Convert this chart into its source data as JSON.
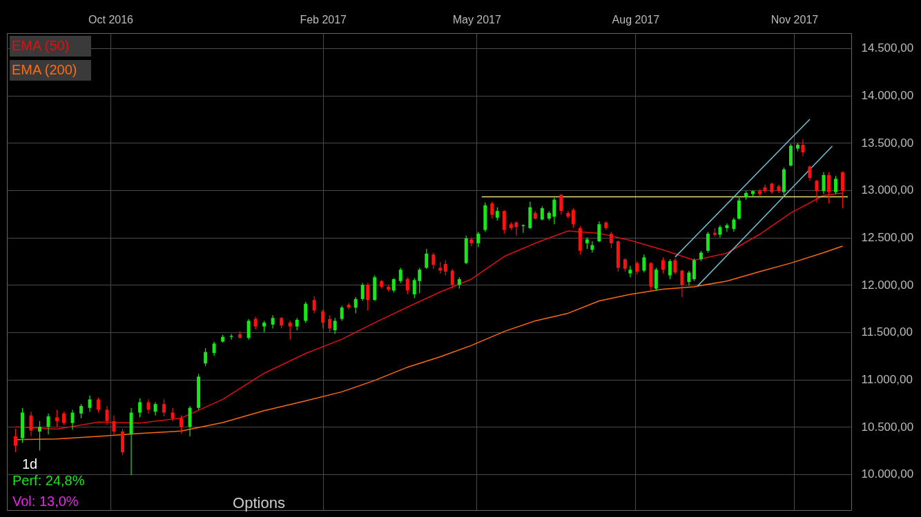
{
  "chart_data": {
    "type": "candlestick",
    "x": [
      "2016-08-07",
      "2016-08-11",
      "2016-08-16",
      "2016-08-21",
      "2016-08-26",
      "2016-08-31",
      "2016-09-04",
      "2016-09-09",
      "2016-09-14",
      "2016-09-19",
      "2016-09-24",
      "2016-09-29",
      "2016-10-03",
      "2016-10-08",
      "2016-10-13",
      "2016-10-18",
      "2016-10-23",
      "2016-10-27",
      "2016-11-01",
      "2016-11-06",
      "2016-11-11",
      "2016-11-16",
      "2016-11-21",
      "2016-11-25",
      "2016-11-30",
      "2016-12-05",
      "2016-12-10",
      "2016-12-15",
      "2016-12-20",
      "2016-12-24",
      "2016-12-29",
      "2017-01-03",
      "2017-01-08",
      "2017-01-13",
      "2017-01-17",
      "2017-01-22",
      "2017-01-27",
      "2017-02-01",
      "2017-02-05",
      "2017-02-08",
      "2017-02-12",
      "2017-02-16",
      "2017-02-20",
      "2017-02-24",
      "2017-02-27",
      "2017-03-03",
      "2017-03-07",
      "2017-03-11",
      "2017-03-14",
      "2017-03-18",
      "2017-03-22",
      "2017-03-26",
      "2017-03-29",
      "2017-04-02",
      "2017-04-06",
      "2017-04-10",
      "2017-04-13",
      "2017-04-17",
      "2017-04-21",
      "2017-04-25",
      "2017-04-28",
      "2017-05-02",
      "2017-05-06",
      "2017-05-10",
      "2017-05-13",
      "2017-05-17",
      "2017-05-21",
      "2017-05-24",
      "2017-05-28",
      "2017-06-01",
      "2017-06-04",
      "2017-06-08",
      "2017-06-12",
      "2017-06-15",
      "2017-06-19",
      "2017-06-23",
      "2017-06-26",
      "2017-06-30",
      "2017-07-04",
      "2017-07-07",
      "2017-07-11",
      "2017-07-15",
      "2017-07-18",
      "2017-07-22",
      "2017-07-26",
      "2017-07-29",
      "2017-08-02",
      "2017-08-06",
      "2017-08-10",
      "2017-08-13",
      "2017-08-17",
      "2017-08-21",
      "2017-08-24",
      "2017-08-28",
      "2017-09-01",
      "2017-09-04",
      "2017-09-08",
      "2017-09-12",
      "2017-09-16",
      "2017-09-19",
      "2017-09-23",
      "2017-09-27",
      "2017-09-30",
      "2017-10-04",
      "2017-10-08",
      "2017-10-12",
      "2017-10-15",
      "2017-10-19",
      "2017-10-23",
      "2017-10-26",
      "2017-10-30",
      "2017-11-03",
      "2017-11-06",
      "2017-11-10",
      "2017-11-14",
      "2017-11-18",
      "2017-11-21",
      "2017-11-25",
      "2017-11-29"
    ],
    "ohlc": [
      [
        10400,
        10480,
        10230,
        10300
      ],
      [
        10380,
        10700,
        10330,
        10650
      ],
      [
        10620,
        10660,
        10400,
        10460
      ],
      [
        10450,
        10560,
        10250,
        10500
      ],
      [
        10500,
        10640,
        10420,
        10610
      ],
      [
        10600,
        10680,
        10500,
        10560
      ],
      [
        10640,
        10660,
        10520,
        10540
      ],
      [
        10540,
        10680,
        10470,
        10650
      ],
      [
        10640,
        10740,
        10590,
        10720
      ],
      [
        10700,
        10830,
        10660,
        10790
      ],
      [
        10790,
        10810,
        10650,
        10680
      ],
      [
        10680,
        10720,
        10520,
        10560
      ],
      [
        10560,
        10620,
        10420,
        10450
      ],
      [
        10450,
        10480,
        10200,
        10230
      ],
      [
        10420,
        10700,
        9990,
        10650
      ],
      [
        10650,
        10800,
        10600,
        10760
      ],
      [
        10760,
        10790,
        10640,
        10680
      ],
      [
        10660,
        10760,
        10620,
        10740
      ],
      [
        10740,
        10790,
        10610,
        10650
      ],
      [
        10650,
        10700,
        10560,
        10590
      ],
      [
        10590,
        10620,
        10430,
        10500
      ],
      [
        10500,
        10720,
        10400,
        10700
      ],
      [
        10700,
        11060,
        10680,
        11030
      ],
      [
        11170,
        11330,
        11140,
        11290
      ],
      [
        11280,
        11400,
        11250,
        11380
      ],
      [
        11400,
        11470,
        11390,
        11450
      ],
      [
        11450,
        11480,
        11420,
        11460
      ],
      [
        11480,
        11510,
        11430,
        11440
      ],
      [
        11440,
        11640,
        11420,
        11620
      ],
      [
        11640,
        11660,
        11530,
        11560
      ],
      [
        11560,
        11620,
        11500,
        11600
      ],
      [
        11580,
        11680,
        11540,
        11650
      ],
      [
        11650,
        11660,
        11540,
        11570
      ],
      [
        11600,
        11620,
        11420,
        11560
      ],
      [
        11560,
        11650,
        11520,
        11630
      ],
      [
        11620,
        11820,
        11600,
        11800
      ],
      [
        11840,
        11880,
        11700,
        11730
      ],
      [
        11720,
        11740,
        11540,
        11600
      ],
      [
        11640,
        11680,
        11500,
        11540
      ],
      [
        11520,
        11650,
        11480,
        11620
      ],
      [
        11640,
        11780,
        11620,
        11760
      ],
      [
        11790,
        11810,
        11740,
        11760
      ],
      [
        11760,
        11870,
        11700,
        11850
      ],
      [
        11850,
        12020,
        11830,
        12000
      ],
      [
        12000,
        12020,
        11730,
        11840
      ],
      [
        11840,
        12100,
        11830,
        12080
      ],
      [
        12040,
        12050,
        11960,
        11980
      ],
      [
        11980,
        12000,
        11930,
        11950
      ],
      [
        11940,
        12070,
        11920,
        12060
      ],
      [
        12040,
        12180,
        12020,
        12160
      ],
      [
        12060,
        12080,
        11900,
        11940
      ],
      [
        11900,
        12070,
        11860,
        12050
      ],
      [
        12040,
        12180,
        11910,
        12160
      ],
      [
        12180,
        12380,
        12170,
        12330
      ],
      [
        12320,
        12340,
        12170,
        12210
      ],
      [
        12180,
        12240,
        12120,
        12150
      ],
      [
        12220,
        12260,
        12100,
        12140
      ],
      [
        12150,
        12170,
        11960,
        12000
      ],
      [
        12000,
        12080,
        11960,
        12060
      ],
      [
        12230,
        12520,
        12220,
        12490
      ],
      [
        12480,
        12500,
        12410,
        12440
      ],
      [
        12440,
        12560,
        12400,
        12540
      ],
      [
        12580,
        12870,
        12560,
        12840
      ],
      [
        12860,
        12880,
        12700,
        12740
      ],
      [
        12710,
        12820,
        12680,
        12780
      ],
      [
        12780,
        12790,
        12540,
        12580
      ],
      [
        12640,
        12660,
        12580,
        12600
      ],
      [
        12660,
        12670,
        12520,
        12610
      ],
      [
        12620,
        12640,
        12550,
        12630
      ],
      [
        12600,
        12880,
        12590,
        12820
      ],
      [
        12760,
        12780,
        12690,
        12700
      ],
      [
        12690,
        12830,
        12680,
        12810
      ],
      [
        12700,
        12780,
        12680,
        12760
      ],
      [
        12720,
        12920,
        12640,
        12900
      ],
      [
        12950,
        12960,
        12740,
        12780
      ],
      [
        12760,
        12780,
        12700,
        12720
      ],
      [
        12790,
        12810,
        12600,
        12640
      ],
      [
        12600,
        12620,
        12320,
        12360
      ],
      [
        12440,
        12500,
        12380,
        12480
      ],
      [
        12370,
        12460,
        12340,
        12420
      ],
      [
        12460,
        12670,
        12450,
        12640
      ],
      [
        12660,
        12670,
        12580,
        12600
      ],
      [
        12540,
        12560,
        12390,
        12440
      ],
      [
        12460,
        12470,
        12140,
        12180
      ],
      [
        12270,
        12280,
        12140,
        12170
      ],
      [
        12120,
        12200,
        12080,
        12160
      ],
      [
        12230,
        12250,
        12110,
        12140
      ],
      [
        12150,
        12320,
        12130,
        12290
      ],
      [
        12230,
        12240,
        11940,
        11980
      ],
      [
        11960,
        12180,
        11940,
        12160
      ],
      [
        12260,
        12290,
        12120,
        12160
      ],
      [
        12100,
        12270,
        12060,
        12250
      ],
      [
        12260,
        12280,
        12110,
        12130
      ],
      [
        12150,
        12160,
        11870,
        12000
      ],
      [
        12030,
        12150,
        11990,
        12130
      ],
      [
        12060,
        12280,
        12040,
        12260
      ],
      [
        12270,
        12360,
        12250,
        12340
      ],
      [
        12360,
        12560,
        12340,
        12540
      ],
      [
        12550,
        12600,
        12510,
        12530
      ],
      [
        12530,
        12630,
        12500,
        12610
      ],
      [
        12600,
        12650,
        12560,
        12630
      ],
      [
        12590,
        12710,
        12560,
        12690
      ],
      [
        12700,
        12920,
        12690,
        12890
      ],
      [
        12930,
        12990,
        12900,
        12970
      ],
      [
        12960,
        13000,
        12930,
        12990
      ],
      [
        12990,
        13010,
        12940,
        12960
      ],
      [
        13030,
        13060,
        12970,
        12990
      ],
      [
        13070,
        13080,
        12960,
        12980
      ],
      [
        13040,
        13060,
        12970,
        12990
      ],
      [
        12980,
        13240,
        12940,
        13220
      ],
      [
        13260,
        13490,
        13250,
        13470
      ],
      [
        13440,
        13500,
        13410,
        13480
      ],
      [
        13480,
        13540,
        13360,
        13400
      ],
      [
        13250,
        13260,
        13100,
        13130
      ],
      [
        13100,
        13110,
        12870,
        12990
      ],
      [
        12990,
        13190,
        12960,
        13160
      ],
      [
        13160,
        13190,
        12860,
        12980
      ],
      [
        12980,
        13150,
        12960,
        13120
      ],
      [
        13190,
        13200,
        12810,
        12990
      ]
    ],
    "series": [
      {
        "type": "line",
        "name": "EMA (50)",
        "color": "#e01010",
        "x": [
          "2016-08-07",
          "2016-08-31",
          "2016-09-24",
          "2016-10-18",
          "2016-11-11",
          "2016-12-05",
          "2016-12-29",
          "2017-01-22",
          "2017-02-12",
          "2017-03-03",
          "2017-03-22",
          "2017-04-10",
          "2017-04-28",
          "2017-05-17",
          "2017-06-04",
          "2017-06-23",
          "2017-07-11",
          "2017-07-29",
          "2017-08-17",
          "2017-09-04",
          "2017-09-23",
          "2017-10-12",
          "2017-10-30",
          "2017-11-18",
          "2017-11-29"
        ],
        "values": [
          10500,
          10475,
          10550,
          10540,
          10593,
          10790,
          11066,
          11275,
          11425,
          11600,
          11765,
          11925,
          12060,
          12300,
          12440,
          12570,
          12545,
          12470,
          12370,
          12260,
          12335,
          12535,
          12760,
          12945,
          12970
        ]
      },
      {
        "type": "line",
        "name": "EMA (200)",
        "color": "#ff6a10",
        "x": [
          "2016-08-07",
          "2016-08-31",
          "2016-09-24",
          "2016-10-18",
          "2016-11-11",
          "2016-12-05",
          "2016-12-29",
          "2017-01-22",
          "2017-02-12",
          "2017-03-03",
          "2017-03-22",
          "2017-04-10",
          "2017-04-28",
          "2017-05-17",
          "2017-06-04",
          "2017-06-23",
          "2017-07-11",
          "2017-07-29",
          "2017-08-17",
          "2017-09-04",
          "2017-09-23",
          "2017-10-12",
          "2017-10-30",
          "2017-11-18",
          "2017-11-29"
        ],
        "values": [
          10365,
          10372,
          10400,
          10430,
          10455,
          10545,
          10670,
          10775,
          10870,
          10990,
          11130,
          11240,
          11360,
          11507,
          11620,
          11700,
          11830,
          11900,
          11955,
          11980,
          12040,
          12140,
          12230,
          12340,
          12410
        ]
      },
      {
        "type": "line",
        "color": "#e8e070",
        "x": [
          "2017-05-04",
          "2017-12-02"
        ],
        "values": [
          12930,
          12930
        ]
      },
      {
        "type": "line",
        "color": "#6fc3d6",
        "x": [
          "2017-08-24",
          "2017-11-10"
        ],
        "values": [
          12294,
          13750
        ]
      },
      {
        "type": "line",
        "color": "#6fc3d6",
        "x": [
          "2017-09-06",
          "2017-11-23"
        ],
        "values": [
          11988,
          13466
        ]
      }
    ],
    "xlim": [
      "2016-08-04",
      "2017-12-02"
    ],
    "ylim": [
      9620,
      14660
    ],
    "xticks": [
      {
        "value": "2016-10-01",
        "label": "Oct 2016"
      },
      {
        "value": "2017-02-01",
        "label": "Feb 2017"
      },
      {
        "value": "2017-05-01",
        "label": "May 2017"
      },
      {
        "value": "2017-08-01",
        "label": "Aug 2017"
      },
      {
        "value": "2017-11-01",
        "label": "Nov 2017"
      }
    ],
    "yticks": [
      {
        "value": 10000,
        "label": "10.000,00"
      },
      {
        "value": 10500,
        "label": "10.500,00"
      },
      {
        "value": 11000,
        "label": "11.000,00"
      },
      {
        "value": 11500,
        "label": "11.500,00"
      },
      {
        "value": 12000,
        "label": "12.000,00"
      },
      {
        "value": 12500,
        "label": "12.500,00"
      },
      {
        "value": 13000,
        "label": "13.000,00"
      },
      {
        "value": 13500,
        "label": "13.500,00"
      },
      {
        "value": 14000,
        "label": "14.000,00"
      },
      {
        "value": 14500,
        "label": "14.500,00"
      }
    ],
    "grid": true,
    "legend": "top left",
    "annotations": [
      "1d",
      "Perf: 24,8%",
      "Vol: 13,0%",
      "Options"
    ]
  }
}
